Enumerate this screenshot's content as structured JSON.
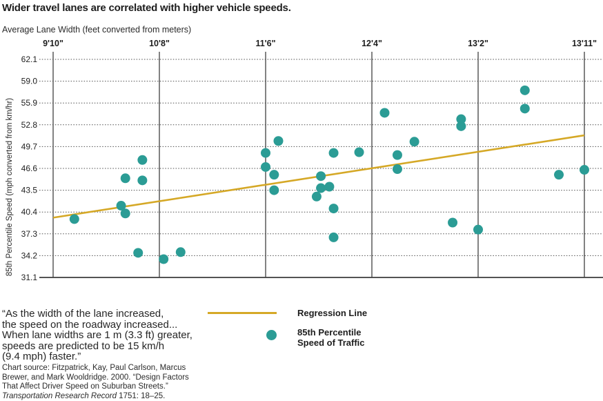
{
  "title": "Wider travel lanes are correlated with higher vehicle speeds.",
  "colors": {
    "dot_teal": "#2B9C95",
    "line_gold": "#D5A826",
    "text": "#1D1D1D",
    "grid_dotted": "#4D4D4D",
    "grid_vertical": "#3F3F3F",
    "axis_line": "#1A1A1A"
  },
  "chart_data": {
    "type": "scatter",
    "title": "Wider travel lanes are correlated with higher vehicle speeds.",
    "xlabel": "Average Lane Width (feet converted from meters)",
    "ylabel": "85th Percentile Speed (mph converted from km/hr)",
    "x_axis": {
      "tick_labels": [
        "9'10\"",
        "10'8\"",
        "11'6\"",
        "12'4\"",
        "13'2\"",
        "13'11\""
      ],
      "tick_meters": [
        3.0,
        3.25,
        3.5,
        3.75,
        4.0,
        4.25
      ],
      "position": "top",
      "gridlines": "solid-vertical"
    },
    "y_axis": {
      "tick_labels": [
        "62.1",
        "59.0",
        "55.9",
        "52.8",
        "49.7",
        "46.6",
        "43.5",
        "40.4",
        "37.3",
        "34.2",
        "31.1"
      ],
      "range": [
        31.1,
        62.1
      ],
      "gridlines": "dotted-horizontal"
    },
    "series": [
      {
        "name": "85th Percentile Speed of Traffic",
        "type": "scatter",
        "points_m_mph": [
          [
            3.05,
            39.4
          ],
          [
            3.16,
            41.3
          ],
          [
            3.17,
            45.2
          ],
          [
            3.17,
            40.2
          ],
          [
            3.2,
            34.6
          ],
          [
            3.21,
            47.8
          ],
          [
            3.21,
            44.9
          ],
          [
            3.26,
            33.7
          ],
          [
            3.3,
            34.7
          ],
          [
            3.5,
            48.8
          ],
          [
            3.5,
            46.8
          ],
          [
            3.52,
            45.7
          ],
          [
            3.52,
            43.5
          ],
          [
            3.53,
            50.5
          ],
          [
            3.62,
            42.6
          ],
          [
            3.63,
            45.5
          ],
          [
            3.63,
            43.8
          ],
          [
            3.65,
            44.0
          ],
          [
            3.66,
            48.8
          ],
          [
            3.66,
            40.9
          ],
          [
            3.66,
            36.8
          ],
          [
            3.72,
            48.9
          ],
          [
            3.78,
            54.5
          ],
          [
            3.81,
            48.5
          ],
          [
            3.81,
            46.5
          ],
          [
            3.85,
            50.4
          ],
          [
            3.94,
            38.9
          ],
          [
            3.96,
            53.6
          ],
          [
            3.96,
            52.6
          ],
          [
            4.0,
            37.9
          ],
          [
            4.11,
            57.7
          ],
          [
            4.11,
            55.1
          ],
          [
            4.19,
            45.7
          ],
          [
            4.25,
            46.4
          ]
        ]
      }
    ],
    "regression": {
      "name": "Regression Line",
      "x1_m": 3.0,
      "y1_mph": 39.6,
      "x2_m": 4.25,
      "y2_mph": 51.3
    },
    "legend_position": "below-left-center"
  },
  "legend": {
    "regression_label": "Regression Line",
    "scatter_label_line1": "85th Percentile",
    "scatter_label_line2": "Speed of Traffic"
  },
  "footer": {
    "quote_lines": [
      "“As the width of the lane increased,",
      "the speed on the roadway increased...",
      "When lane widths are 1 m (3.3 ft) greater,",
      "speeds are predicted to be 15 km/h",
      "(9.4 mph) faster.”"
    ],
    "source_lines": [
      "Chart source: Fitzpatrick, Kay, Paul Carlson, Marcus",
      "Brewer, and Mark Wooldridge. 2000. “Design Factors",
      "That Affect Driver Speed on Suburban Streets.”"
    ],
    "source_journal_italic": "Transportation Research Record",
    "source_journal_rest": " 1751: 18–25."
  }
}
